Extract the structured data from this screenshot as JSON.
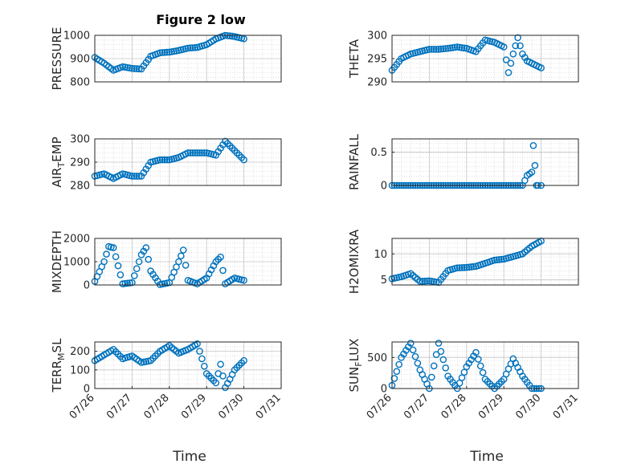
{
  "figure": {
    "title": "Figure 2 low",
    "marker_color": "#0072BD"
  },
  "chart_data": [
    {
      "type": "scatter",
      "panel": "pressure",
      "ylabel": "PRESSURE",
      "xlabel": "",
      "xlim": [
        "07/26",
        "07/31"
      ],
      "ylim": [
        800,
        1000
      ],
      "yticks": [
        "800",
        "900",
        "1000"
      ],
      "xticks": [],
      "grid": true,
      "x": [
        "07/26 00:00",
        "07/26 06:00",
        "07/26 12:00",
        "07/26 18:00",
        "07/27 00:00",
        "07/27 06:00",
        "07/27 12:00",
        "07/27 18:00",
        "07/28 00:00",
        "07/28 06:00",
        "07/28 12:00",
        "07/28 18:00",
        "07/29 00:00",
        "07/29 06:00",
        "07/29 12:00",
        "07/29 18:00",
        "07/30 00:00"
      ],
      "y": [
        905,
        880,
        850,
        865,
        858,
        855,
        910,
        925,
        928,
        935,
        945,
        948,
        960,
        985,
        1000,
        995,
        985
      ]
    },
    {
      "type": "scatter",
      "panel": "theta",
      "ylabel": "THETA",
      "xlabel": "",
      "xlim": [
        "07/26",
        "07/31"
      ],
      "ylim": [
        290,
        300
      ],
      "yticks": [
        "290",
        "295",
        "300"
      ],
      "xticks": [],
      "grid": true,
      "x": [
        "07/26 00:00",
        "07/26 06:00",
        "07/26 12:00",
        "07/26 18:00",
        "07/27 00:00",
        "07/27 06:00",
        "07/27 12:00",
        "07/27 18:00",
        "07/28 00:00",
        "07/28 06:00",
        "07/28 12:00",
        "07/28 18:00",
        "07/29 00:00",
        "07/29 03:00",
        "07/29 06:00",
        "07/29 09:00",
        "07/29 12:00",
        "07/29 15:00",
        "07/29 18:00",
        "07/30 00:00"
      ],
      "y": [
        292.5,
        295,
        296,
        296.5,
        297,
        297,
        297.2,
        297.5,
        297.2,
        296.5,
        299,
        298.5,
        297.5,
        292,
        296,
        299.5,
        296,
        294.5,
        294,
        293
      ]
    },
    {
      "type": "scatter",
      "panel": "air_temp",
      "ylabel": "AIR_TEMP",
      "ylabel_display": {
        "main": "AIR",
        "sub": "T",
        "rest": "EMP"
      },
      "xlabel": "",
      "xlim": [
        "07/26",
        "07/31"
      ],
      "ylim": [
        280,
        300
      ],
      "yticks": [
        "280",
        "290",
        "300"
      ],
      "xticks": [],
      "grid": true,
      "x": [
        "07/26 00:00",
        "07/26 06:00",
        "07/26 12:00",
        "07/26 18:00",
        "07/27 00:00",
        "07/27 06:00",
        "07/27 12:00",
        "07/27 18:00",
        "07/28 00:00",
        "07/28 06:00",
        "07/28 12:00",
        "07/28 18:00",
        "07/29 00:00",
        "07/29 06:00",
        "07/29 12:00",
        "07/29 18:00",
        "07/30 00:00"
      ],
      "y": [
        284,
        285,
        283,
        285,
        284,
        284,
        290,
        291,
        291,
        292,
        294,
        294,
        294,
        293,
        299,
        295,
        291
      ]
    },
    {
      "type": "scatter",
      "panel": "rainfall",
      "ylabel": "RAINFALL",
      "xlabel": "",
      "xlim": [
        "07/26",
        "07/31"
      ],
      "ylim": [
        0,
        0.7
      ],
      "yticks": [
        "0",
        "0.5"
      ],
      "xticks": [],
      "grid": true,
      "x": [
        "07/26 00:00",
        "07/26 12:00",
        "07/27 00:00",
        "07/27 12:00",
        "07/28 00:00",
        "07/28 12:00",
        "07/29 00:00",
        "07/29 12:00",
        "07/29 15:00",
        "07/29 18:00",
        "07/29 19:00",
        "07/29 20:00",
        "07/29 21:00",
        "07/29 22:00",
        "07/30 00:00"
      ],
      "y": [
        0,
        0,
        0,
        0,
        0,
        0,
        0,
        0,
        0.15,
        0.2,
        0.6,
        0.3,
        0,
        0,
        0
      ]
    },
    {
      "type": "scatter",
      "panel": "mixdepth",
      "ylabel": "MIXDEPTH",
      "xlabel": "",
      "xlim": [
        "07/26",
        "07/31"
      ],
      "ylim": [
        0,
        2000
      ],
      "yticks": [
        "0",
        "1000",
        "2000"
      ],
      "xticks": [],
      "grid": true,
      "x": [
        "07/26 00:00",
        "07/26 06:00",
        "07/26 09:00",
        "07/26 12:00",
        "07/26 18:00",
        "07/27 00:00",
        "07/27 06:00",
        "07/27 09:00",
        "07/27 12:00",
        "07/27 18:00",
        "07/28 00:00",
        "07/28 06:00",
        "07/28 09:00",
        "07/28 12:00",
        "07/28 18:00",
        "07/29 00:00",
        "07/29 06:00",
        "07/29 09:00",
        "07/29 12:00",
        "07/29 18:00",
        "07/30 00:00"
      ],
      "y": [
        150,
        1000,
        1650,
        1600,
        50,
        100,
        1300,
        1600,
        600,
        20,
        100,
        1000,
        1500,
        200,
        50,
        300,
        1000,
        1200,
        50,
        300,
        200
      ]
    },
    {
      "type": "scatter",
      "panel": "h2omixra",
      "ylabel": "H2OMIXRA",
      "xlabel": "",
      "xlim": [
        "07/26",
        "07/31"
      ],
      "ylim": [
        4,
        13
      ],
      "yticks": [
        "5",
        "10"
      ],
      "xticks": [],
      "grid": true,
      "x": [
        "07/26 00:00",
        "07/26 06:00",
        "07/26 12:00",
        "07/26 18:00",
        "07/27 00:00",
        "07/27 06:00",
        "07/27 12:00",
        "07/27 18:00",
        "07/28 00:00",
        "07/28 06:00",
        "07/28 12:00",
        "07/28 18:00",
        "07/29 00:00",
        "07/29 06:00",
        "07/29 12:00",
        "07/29 18:00",
        "07/30 00:00"
      ],
      "y": [
        5.2,
        5.6,
        6.2,
        4.7,
        4.8,
        4.5,
        6.8,
        7.3,
        7.4,
        7.6,
        8.2,
        8.8,
        9,
        9.5,
        10,
        11.5,
        12.5
      ]
    },
    {
      "type": "scatter",
      "panel": "terr_msl",
      "ylabel": "TERR_MSL",
      "ylabel_display": {
        "main": "TERR",
        "sub": "M",
        "rest": "SL"
      },
      "xlabel": "Time",
      "xlim": [
        "07/26",
        "07/31"
      ],
      "ylim": [
        0,
        250
      ],
      "yticks": [
        "0",
        "100",
        "200"
      ],
      "xticks": [
        "07/26",
        "07/27",
        "07/28",
        "07/29",
        "07/30",
        "07/31"
      ],
      "grid": true,
      "x": [
        "07/26 00:00",
        "07/26 06:00",
        "07/26 12:00",
        "07/26 18:00",
        "07/27 00:00",
        "07/27 06:00",
        "07/27 12:00",
        "07/27 18:00",
        "07/28 00:00",
        "07/28 06:00",
        "07/28 12:00",
        "07/28 18:00",
        "07/29 00:00",
        "07/29 06:00",
        "07/29 09:00",
        "07/29 12:00",
        "07/29 15:00",
        "07/29 18:00",
        "07/30 00:00"
      ],
      "y": [
        150,
        180,
        210,
        160,
        175,
        140,
        150,
        200,
        230,
        190,
        210,
        240,
        80,
        30,
        130,
        5,
        50,
        100,
        150
      ]
    },
    {
      "type": "scatter",
      "panel": "sun_flux",
      "ylabel": "SUN_FLUX",
      "ylabel_display": {
        "main": "SUN",
        "sub": "F",
        "rest": "LUX"
      },
      "xlabel": "Time",
      "xlim": [
        "07/26",
        "07/31"
      ],
      "ylim": [
        0,
        750
      ],
      "yticks": [
        "0",
        "500"
      ],
      "xticks": [
        "07/26",
        "07/27",
        "07/28",
        "07/29",
        "07/30",
        "07/31"
      ],
      "grid": true,
      "x": [
        "07/26 00:00",
        "07/26 06:00",
        "07/26 12:00",
        "07/26 18:00",
        "07/27 00:00",
        "07/27 06:00",
        "07/27 12:00",
        "07/27 18:00",
        "07/28 00:00",
        "07/28 06:00",
        "07/28 12:00",
        "07/28 18:00",
        "07/29 00:00",
        "07/29 06:00",
        "07/29 12:00",
        "07/29 18:00",
        "07/30 00:00"
      ],
      "y": [
        50,
        500,
        730,
        300,
        0,
        730,
        200,
        0,
        350,
        580,
        150,
        0,
        150,
        480,
        200,
        0,
        0
      ]
    }
  ]
}
